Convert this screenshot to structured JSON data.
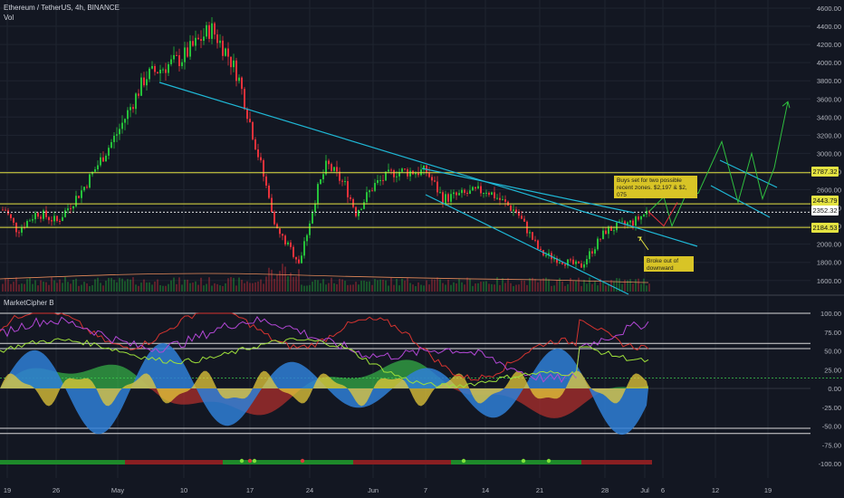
{
  "header": {
    "title": "Ethereum / TetherUS, 4h, BINANCE",
    "volume_label": "Vol",
    "indicator_label": "MarketCipher B"
  },
  "colors": {
    "background": "#131722",
    "grid": "#1f2430",
    "axis_text": "#b2b5be",
    "candle_up": "#26c13a",
    "candle_down": "#e8323b",
    "trendline": "#1fb8d6",
    "horizontal_level": "#e4e342",
    "projection": "#2fbf3f",
    "annotation_bg": "#d8c426",
    "indicator_blue": "#2f7fd6",
    "indicator_green": "#3ccf4e",
    "indicator_red": "#d4332f",
    "indicator_yellow": "#e6c93a"
  },
  "price_axis": {
    "labels": [
      "4600.00",
      "4400.00",
      "4200.00",
      "4000.00",
      "3800.00",
      "3600.00",
      "3400.00",
      "3200.00",
      "3000.00",
      "2800.00",
      "2600.00",
      "2400.00",
      "2200.00",
      "2000.00",
      "1800.00",
      "1600.00"
    ]
  },
  "price_tags": [
    {
      "value": "2787.32",
      "kind": "level"
    },
    {
      "value": "2443.79",
      "kind": "level"
    },
    {
      "value": "2352.32",
      "kind": "current"
    },
    {
      "value": "2184.53",
      "kind": "level"
    }
  ],
  "indicator_axis": {
    "labels": [
      "100.00",
      "75.00",
      "50.00",
      "25.00",
      "0.00",
      "-25.00",
      "-50.00",
      "-75.00",
      "-100.00"
    ]
  },
  "time_axis": {
    "labels": [
      "19",
      "26",
      "May",
      "10",
      "17",
      "24",
      "Jun",
      "7",
      "14",
      "21",
      "28",
      "Jul",
      "6",
      "12",
      "19"
    ]
  },
  "annotations": {
    "buys_note": "Buys set for two possible recent zones. $2,197 & $2, 075",
    "breakout_note": "Broke out of downward channel."
  },
  "chart_data": {
    "type": "candlestick",
    "title": "Ethereum / TetherUS, 4h, BINANCE",
    "ylim": [
      1550,
      4650
    ],
    "horizontal_levels": [
      2787.32,
      2443.79,
      2184.53
    ],
    "current_price": 2352.32,
    "key_points": [
      {
        "time": "Apr 16",
        "price": 2320
      },
      {
        "time": "Apr 19",
        "price": 2150
      },
      {
        "time": "May 3",
        "price": 3250
      },
      {
        "time": "May 12",
        "price": 4380
      },
      {
        "time": "May 19",
        "price": 2150
      },
      {
        "time": "May 23",
        "price": 1800
      },
      {
        "time": "May 27",
        "price": 2880
      },
      {
        "time": "Jun 2",
        "price": 2650
      },
      {
        "time": "Jun 7",
        "price": 2800
      },
      {
        "time": "Jun 14",
        "price": 2600
      },
      {
        "time": "Jun 22",
        "price": 1900
      },
      {
        "time": "Jun 26",
        "price": 1750
      },
      {
        "time": "Jul 1",
        "price": 2200
      },
      {
        "time": "Jul 4",
        "price": 2352.32
      }
    ],
    "projection": [
      {
        "time": "Jul 4",
        "price": 2352
      },
      {
        "time": "Jul 6",
        "price": 2500
      },
      {
        "time": "Jul 7",
        "price": 2180
      },
      {
        "time": "Jul 12",
        "price": 3120
      },
      {
        "time": "Jul 14",
        "price": 2420
      },
      {
        "time": "Jul 19",
        "price": 3570
      }
    ],
    "indicator": {
      "name": "MarketCipher B",
      "ylim": [
        -100,
        100
      ],
      "levels": [
        100,
        60,
        53,
        -53,
        -60
      ]
    }
  }
}
